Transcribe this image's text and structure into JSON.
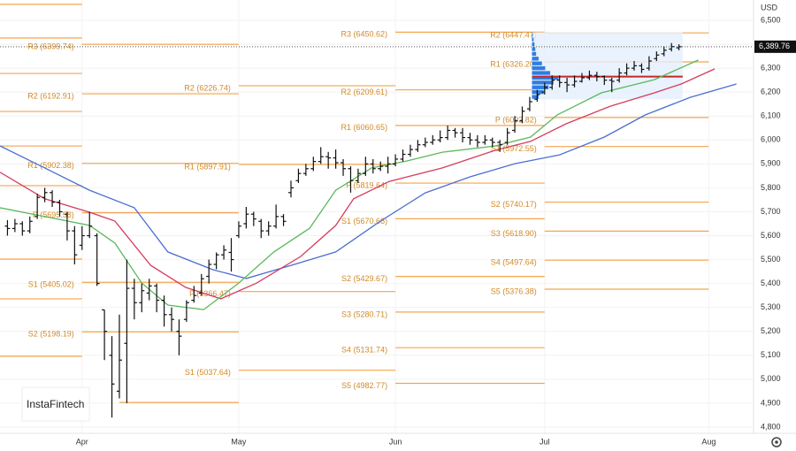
{
  "chart_data": {
    "type": "ohlc",
    "currency": "USD",
    "watermark": "InstaFintech",
    "bar_color": "#111111",
    "xlim": [
      0,
      101
    ],
    "ylim": [
      4774,
      6585
    ],
    "grid": true,
    "xticks": [
      {
        "value": 11,
        "label": "Apr"
      },
      {
        "value": 32,
        "label": "May"
      },
      {
        "value": 53,
        "label": "Jun"
      },
      {
        "value": 73,
        "label": "Jul"
      },
      {
        "value": 95,
        "label": "Aug"
      }
    ],
    "yticks": [
      {
        "value": 6500,
        "label": "6,500"
      },
      {
        "value": 6400,
        "label": "6,400"
      },
      {
        "value": 6300,
        "label": "6,300"
      },
      {
        "value": 6200,
        "label": "6,200"
      },
      {
        "value": 6100,
        "label": "6,100"
      },
      {
        "value": 6000,
        "label": "6,000"
      },
      {
        "value": 5900,
        "label": "5,900"
      },
      {
        "value": 5800,
        "label": "5,800"
      },
      {
        "value": 5700,
        "label": "5,700"
      },
      {
        "value": 5600,
        "label": "5,600"
      },
      {
        "value": 5500,
        "label": "5,500"
      },
      {
        "value": 5400,
        "label": "5,400"
      },
      {
        "value": 5300,
        "label": "5,300"
      },
      {
        "value": 5200,
        "label": "5,200"
      },
      {
        "value": 5100,
        "label": "5,100"
      },
      {
        "value": 5000,
        "label": "5,000"
      },
      {
        "value": 4900,
        "label": "4,900"
      },
      {
        "value": 4800,
        "label": "4,800"
      }
    ],
    "last_price": {
      "value": 6389.76,
      "label": "6,389.76"
    },
    "x": [
      1,
      2,
      3,
      4,
      5,
      6,
      7,
      8,
      9,
      10,
      11,
      12,
      13,
      14,
      15,
      16,
      17,
      18,
      19,
      20,
      21,
      22,
      23,
      24,
      25,
      26,
      27,
      28,
      29,
      30,
      31,
      32,
      33,
      34,
      35,
      36,
      37,
      38,
      39,
      40,
      41,
      42,
      43,
      44,
      45,
      46,
      47,
      48,
      49,
      50,
      51,
      52,
      53,
      54,
      55,
      56,
      57,
      58,
      59,
      60,
      61,
      62,
      63,
      64,
      65,
      66,
      67,
      68,
      69,
      70,
      71,
      72,
      73,
      74,
      75,
      76,
      77,
      78,
      79,
      80,
      81,
      82,
      83,
      84,
      85,
      86,
      87,
      88,
      89,
      90,
      91
    ],
    "open": [
      5640,
      5630,
      5650,
      5620,
      5680,
      5760,
      5780,
      5740,
      5690,
      5620,
      5560,
      5600,
      5600,
      5290,
      5100,
      4950,
      5150,
      5380,
      5320,
      5360,
      5390,
      5330,
      5270,
      5200,
      5250,
      5330,
      5360,
      5430,
      5480,
      5520,
      5530,
      5600,
      5650,
      5690,
      5660,
      5620,
      5640,
      5680,
      5780,
      5830,
      5860,
      5880,
      5910,
      5930,
      5925,
      5905,
      5880,
      5830,
      5860,
      5900,
      5880,
      5890,
      5900,
      5920,
      5940,
      5960,
      5980,
      5990,
      6000,
      6010,
      6040,
      6030,
      6010,
      6000,
      5990,
      6000,
      5990,
      5990,
      6040,
      6080,
      6130,
      6170,
      6200,
      6220,
      6250,
      6240,
      6230,
      6245,
      6260,
      6270,
      6265,
      6250,
      6250,
      6280,
      6300,
      6310,
      6300,
      6340,
      6360,
      6380,
      6385
    ],
    "high": [
      5665,
      5670,
      5660,
      5680,
      5775,
      5800,
      5790,
      5750,
      5700,
      5640,
      5640,
      5700,
      5610,
      5290,
      5180,
      5270,
      5500,
      5420,
      5400,
      5420,
      5400,
      5350,
      5300,
      5250,
      5330,
      5390,
      5440,
      5500,
      5530,
      5560,
      5590,
      5660,
      5720,
      5700,
      5670,
      5660,
      5730,
      5690,
      5830,
      5880,
      5900,
      5930,
      5970,
      5950,
      5960,
      5920,
      5890,
      5880,
      5930,
      5920,
      5910,
      5930,
      5940,
      5960,
      5980,
      6000,
      6010,
      6020,
      6040,
      6060,
      6050,
      6050,
      6030,
      6020,
      6020,
      6010,
      6000,
      6050,
      6100,
      6140,
      6180,
      6210,
      6240,
      6270,
      6270,
      6260,
      6270,
      6280,
      6290,
      6285,
      6270,
      6260,
      6300,
      6320,
      6330,
      6320,
      6350,
      6370,
      6390,
      6405,
      6400
    ],
    "low": [
      5600,
      5615,
      5600,
      5610,
      5670,
      5740,
      5720,
      5680,
      5580,
      5480,
      5540,
      5590,
      5390,
      5080,
      4840,
      4920,
      4900,
      5250,
      5280,
      5330,
      5280,
      5220,
      5200,
      5100,
      5240,
      5320,
      5350,
      5400,
      5460,
      5500,
      5450,
      5590,
      5630,
      5640,
      5590,
      5600,
      5630,
      5640,
      5760,
      5820,
      5850,
      5870,
      5900,
      5880,
      5880,
      5850,
      5780,
      5820,
      5850,
      5860,
      5870,
      5860,
      5890,
      5910,
      5930,
      5950,
      5970,
      5980,
      5990,
      6000,
      6010,
      5990,
      5980,
      5970,
      5980,
      5970,
      5950,
      5980,
      6030,
      6070,
      6120,
      6160,
      6190,
      6210,
      6220,
      6200,
      6220,
      6240,
      6250,
      6245,
      6230,
      6200,
      6240,
      6270,
      6290,
      6280,
      6290,
      6330,
      6350,
      6370,
      6375
    ],
    "close": [
      5630,
      5650,
      5620,
      5660,
      5760,
      5780,
      5740,
      5700,
      5620,
      5520,
      5600,
      5640,
      5400,
      5200,
      4980,
      5080,
      5380,
      5320,
      5370,
      5390,
      5330,
      5270,
      5250,
      5180,
      5320,
      5350,
      5420,
      5480,
      5520,
      5540,
      5500,
      5640,
      5690,
      5670,
      5620,
      5640,
      5680,
      5660,
      5800,
      5860,
      5880,
      5910,
      5930,
      5925,
      5905,
      5880,
      5830,
      5860,
      5900,
      5880,
      5890,
      5900,
      5920,
      5940,
      5960,
      5980,
      5990,
      6000,
      6010,
      6040,
      6030,
      6010,
      6000,
      5990,
      6000,
      5990,
      5980,
      6030,
      6080,
      6120,
      6160,
      6190,
      6220,
      6250,
      6240,
      6230,
      6245,
      6260,
      6270,
      6265,
      6250,
      6245,
      6280,
      6300,
      6310,
      6295,
      6330,
      6355,
      6375,
      6390,
      6389.76
    ],
    "moving_averages": [
      {
        "color": "#4a6fd1",
        "x": [
          0,
          6,
          12,
          18,
          22.5,
          28.5,
          33,
          39,
          45,
          51,
          57,
          63,
          69,
          75,
          81,
          86.5,
          92.5,
          98.7
        ],
        "values": [
          5975,
          5883,
          5790,
          5717,
          5532,
          5458,
          5421,
          5476,
          5532,
          5661,
          5779,
          5846,
          5901,
          5938,
          6012,
          6105,
          6178,
          6234
        ]
      },
      {
        "color": "#d43c5e",
        "x": [
          0,
          6,
          12,
          15.4,
          20.2,
          24.9,
          29.6,
          34.4,
          40.3,
          45,
          47.4,
          52.2,
          59.3,
          66.4,
          71.1,
          75.9,
          81.8,
          87.7,
          91.3,
          95.8
        ],
        "values": [
          5865,
          5754,
          5698,
          5661,
          5476,
          5384,
          5336,
          5402,
          5513,
          5643,
          5754,
          5827,
          5883,
          5957,
          5994,
          6068,
          6141,
          6197,
          6234,
          6297
        ]
      },
      {
        "color": "#5cb85c",
        "x": [
          0,
          6,
          12,
          15.4,
          19,
          22.5,
          27.3,
          32,
          36.7,
          41.5,
          45,
          49.8,
          54.5,
          59.3,
          66.4,
          71.1,
          74.7,
          80.6,
          87.7,
          93.6
        ],
        "values": [
          5717,
          5680,
          5643,
          5569,
          5402,
          5310,
          5291,
          5402,
          5532,
          5631,
          5790,
          5883,
          5912,
          5949,
          5975,
          6012,
          6105,
          6197,
          6252,
          6334
        ]
      }
    ],
    "level_color": "#f5a54e",
    "unlabeled_levels": [
      {
        "from": 0,
        "to": 11,
        "values": [
          6567,
          6426,
          6278,
          6119,
          5975,
          5809,
          5502,
          5336,
          5096
        ]
      },
      {
        "from": 16,
        "to": 32,
        "values": [
          4903
        ]
      }
    ],
    "pivots": [
      {
        "from": 11,
        "to": 32,
        "levels": [
          {
            "label": "R3 (6399.74)",
            "value": 6399.74
          },
          {
            "label": "R2 (6192.91)",
            "value": 6192.91
          },
          {
            "label": "R1 (5902.38)",
            "value": 5902.38
          },
          {
            "label": "P (5695.58)",
            "value": 5695.58
          },
          {
            "label": "S1 (5405.02)",
            "value": 5405.02
          },
          {
            "label": "S2 (5198.19)",
            "value": 5198.19
          }
        ]
      },
      {
        "from": 32,
        "to": 53,
        "levels": [
          {
            "label": "R2 (6226.74)",
            "value": 6226.74
          },
          {
            "label": "R1 (5897.91)",
            "value": 5897.91
          },
          {
            "label": "P (5366.47)",
            "value": 5366.47
          },
          {
            "label": "S1 (5037.64)",
            "value": 5037.64
          }
        ]
      },
      {
        "from": 53,
        "to": 73,
        "levels": [
          {
            "label": "R3 (6450.62)",
            "value": 6450.62
          },
          {
            "label": "R2 (6209.61)",
            "value": 6209.61
          },
          {
            "label": "R1 (6060.65)",
            "value": 6060.65
          },
          {
            "label": "P (5819.64)",
            "value": 5819.64
          },
          {
            "label": "S1 (5670.68)",
            "value": 5670.68
          },
          {
            "label": "S2 (5429.67)",
            "value": 5429.67
          },
          {
            "label": "S3 (5280.71)",
            "value": 5280.71
          },
          {
            "label": "S4 (5131.74)",
            "value": 5131.74
          },
          {
            "label": "S5 (4982.77)",
            "value": 4982.77
          }
        ]
      },
      {
        "from": 73,
        "to": 95,
        "levels": [
          {
            "label": "R2 (6447.47)",
            "value": 6447.47
          },
          {
            "label": "R1 (6326.20)",
            "value": 6326.2
          },
          {
            "label": "P (6093.82)",
            "value": 6093.82
          },
          {
            "label": "S1 (5972.55)",
            "value": 5972.55
          },
          {
            "label": "S2 (5740.17)",
            "value": 5740.17
          },
          {
            "label": "S3 (5618.90)",
            "value": 5618.9
          },
          {
            "label": "S4 (5497.64)",
            "value": 5497.64
          },
          {
            "label": "S5 (5376.38)",
            "value": 5376.38
          }
        ]
      }
    ],
    "volume_profile": {
      "from": 71.3,
      "to": 91.5,
      "color": "#2f7de1",
      "poc": 6265,
      "poc_color": "#c0282d",
      "prices": [
        6180,
        6200,
        6220,
        6240,
        6260,
        6280,
        6300,
        6320,
        6340,
        6360,
        6380,
        6400,
        6420,
        6440
      ],
      "volumes": [
        8,
        14,
        20,
        26,
        32,
        22,
        16,
        12,
        8,
        5,
        4,
        3,
        2,
        1
      ]
    }
  }
}
